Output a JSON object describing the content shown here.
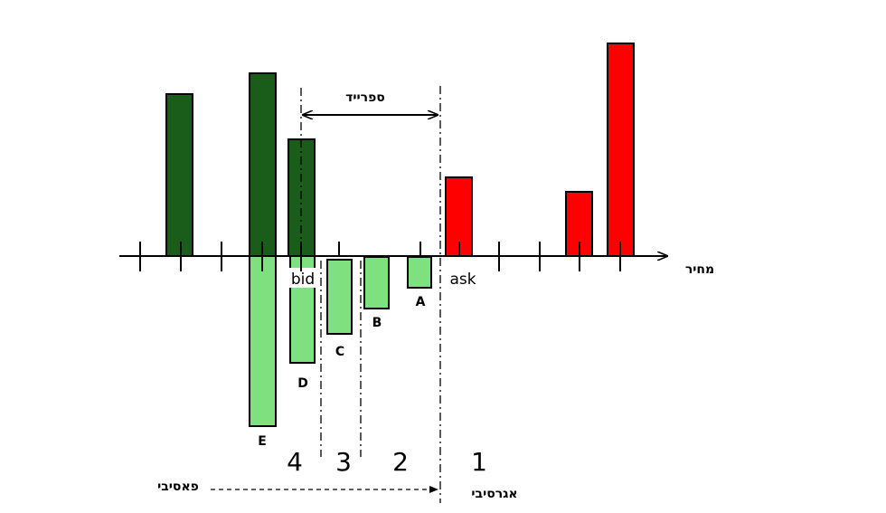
{
  "labels": {
    "price_axis": "מחיר",
    "spread": "ספרייד",
    "bid": "bid",
    "ask": "ask",
    "passive": "פאסיבי",
    "aggressive": "אגרסיבי"
  },
  "orders": {
    "a": "A",
    "b": "B",
    "c": "C",
    "d": "D",
    "e": "E"
  },
  "zones": {
    "z1": "1",
    "z2": "2",
    "z3": "3",
    "z4": "4"
  },
  "colors": {
    "bid_book": "#1a5c1a",
    "ask_book": "#ff0000",
    "incoming_orders": "#7fe07f",
    "outline": "#000000"
  }
}
